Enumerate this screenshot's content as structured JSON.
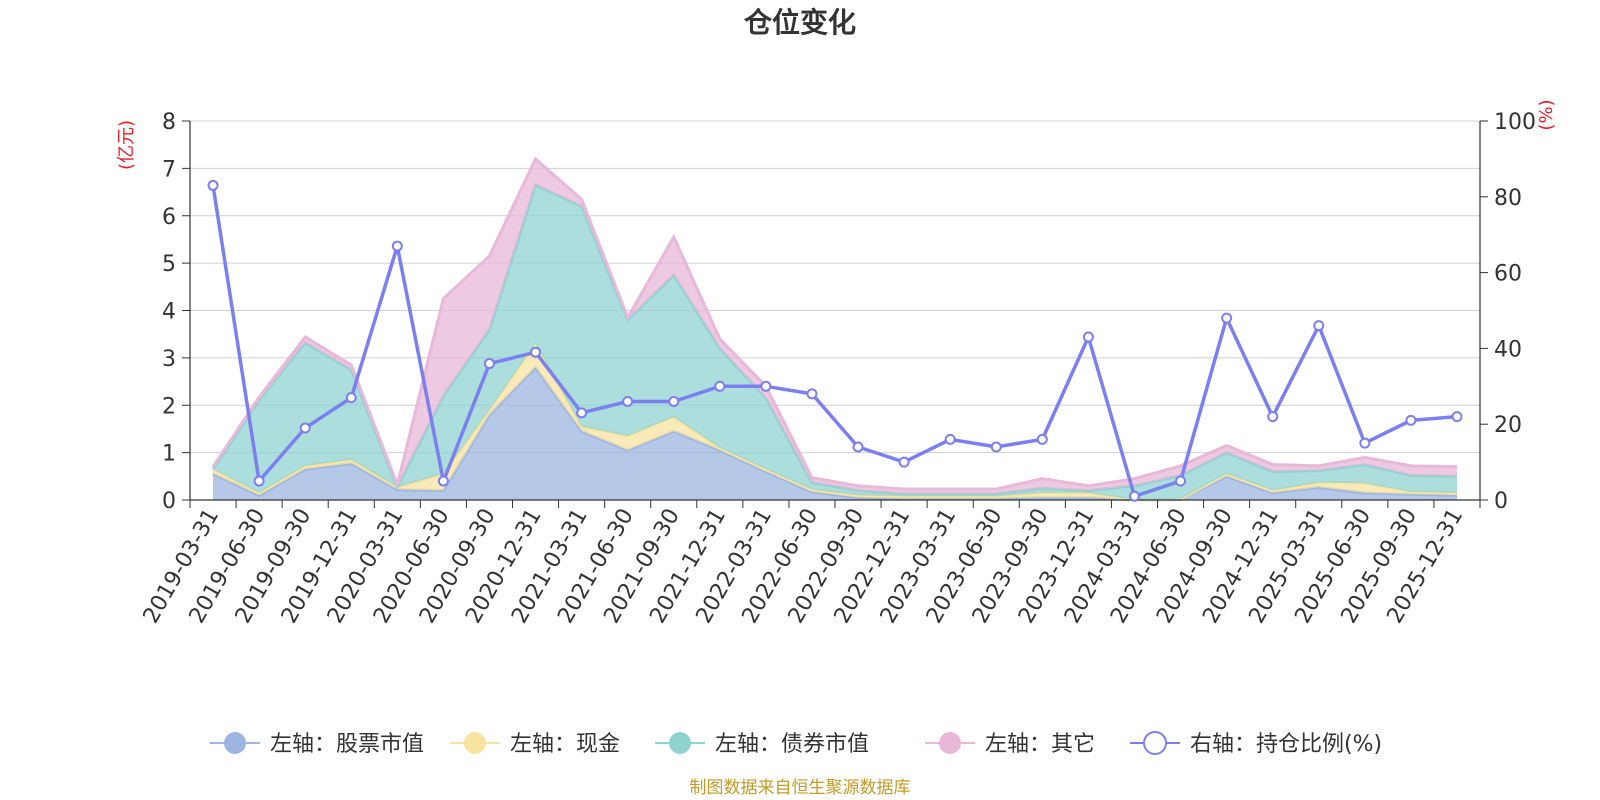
{
  "chart_data": {
    "type": "area",
    "title": "仓位变化",
    "left_unit": "(亿元)",
    "right_unit": "(%)",
    "left_ylim": [
      0,
      8
    ],
    "left_ticks": [
      "0",
      "1",
      "2",
      "3",
      "4",
      "5",
      "6",
      "7",
      "8"
    ],
    "right_ylim": [
      0,
      100
    ],
    "right_ticks": [
      "0",
      "20",
      "40",
      "60",
      "80",
      "100"
    ],
    "grid": true,
    "legend_position": "bottom",
    "categories": [
      "2019-03-31",
      "2019-06-30",
      "2019-09-30",
      "2019-12-31",
      "2020-03-31",
      "2020-06-30",
      "2020-09-30",
      "2020-12-31",
      "2021-03-31",
      "2021-06-30",
      "2021-09-30",
      "2021-12-31",
      "2022-03-31",
      "2022-06-30",
      "2022-09-30",
      "2022-12-31",
      "2023-03-31",
      "2023-06-30",
      "2023-09-30",
      "2023-12-31",
      "2024-03-31",
      "2024-06-30",
      "2024-09-30",
      "2024-12-31",
      "2025-03-31",
      "2025-06-30",
      "2025-09-30",
      "2025-12-31"
    ],
    "series": [
      {
        "name": "左轴：股票市值",
        "axis": "left",
        "color": "#9db5e0",
        "values": [
          0.55,
          0.1,
          0.65,
          0.77,
          0.22,
          0.2,
          1.8,
          2.8,
          1.45,
          1.05,
          1.45,
          1.05,
          0.6,
          0.17,
          0.05,
          0.03,
          0.03,
          0.03,
          0.05,
          0.05,
          0.0,
          0.01,
          0.5,
          0.15,
          0.27,
          0.15,
          0.12,
          0.1
        ]
      },
      {
        "name": "左轴：现金",
        "axis": "left",
        "color": "#f8e3a1",
        "values": [
          0.1,
          0.05,
          0.07,
          0.08,
          0.05,
          0.35,
          0.1,
          0.5,
          0.1,
          0.3,
          0.3,
          0.05,
          0.05,
          0.05,
          0.05,
          0.05,
          0.05,
          0.05,
          0.1,
          0.1,
          0.0,
          0.01,
          0.05,
          0.05,
          0.1,
          0.2,
          0.05,
          0.05
        ]
      },
      {
        "name": "左轴：债券市值",
        "axis": "left",
        "color": "#8fd3d1",
        "values": [
          0.0,
          1.95,
          2.6,
          1.9,
          0.0,
          1.65,
          1.7,
          3.35,
          4.65,
          2.45,
          3.0,
          2.1,
          1.5,
          0.15,
          0.1,
          0.05,
          0.05,
          0.05,
          0.1,
          0.05,
          0.3,
          0.5,
          0.45,
          0.4,
          0.25,
          0.4,
          0.35,
          0.35
        ]
      },
      {
        "name": "左轴：其它",
        "axis": "left",
        "color": "#e8b8d8",
        "values": [
          0.05,
          0.07,
          0.12,
          0.1,
          0.05,
          2.05,
          1.55,
          0.55,
          0.15,
          0.05,
          0.8,
          0.2,
          0.25,
          0.1,
          0.1,
          0.1,
          0.1,
          0.1,
          0.2,
          0.1,
          0.15,
          0.2,
          0.15,
          0.15,
          0.1,
          0.15,
          0.2,
          0.2
        ]
      },
      {
        "name": "右轴：持仓比例(%)",
        "axis": "right",
        "color": "#7b7ff0",
        "values": [
          83,
          5,
          19,
          27,
          67,
          5,
          36,
          39,
          23,
          26,
          26,
          30,
          30,
          28,
          14,
          10,
          16,
          14,
          16,
          43,
          1,
          5,
          48,
          22,
          46,
          15,
          21,
          22
        ]
      }
    ]
  },
  "footer": {
    "source": "制图数据来自恒生聚源数据库"
  },
  "colors": {
    "axis_unit": "#e8202a",
    "source": "#c49a28",
    "grid": "#d0d0d0",
    "axis_line": "#333333"
  }
}
